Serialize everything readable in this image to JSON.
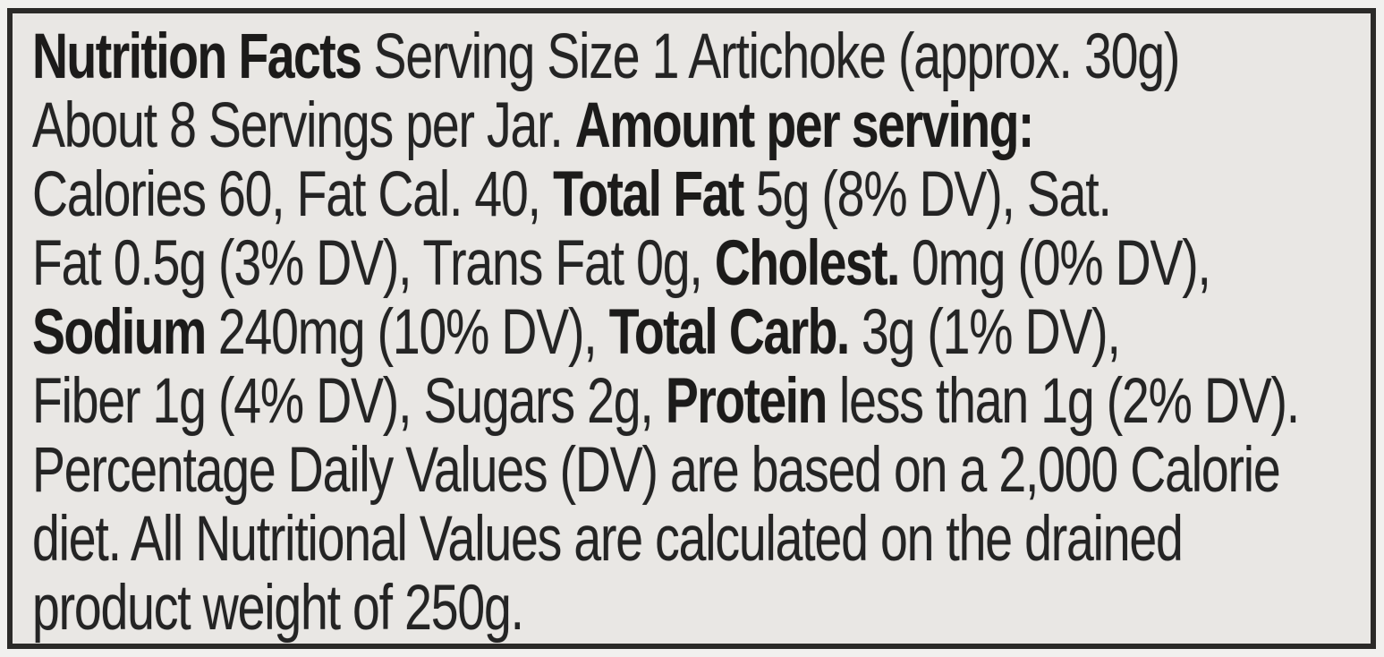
{
  "colors": {
    "outer_background": "#f1f0ee",
    "paper_background": "#e9e7e4",
    "frame": "#2b2a28",
    "ink": "#242424",
    "ink_bold": "#1c1b1a"
  },
  "nutrition_label": {
    "title": "Nutrition Facts",
    "serving_size": "1 Artichoke (approx. 30g)",
    "servings_per_container": "About 8 Servings per Jar.",
    "facts": {
      "calories": "60",
      "fat_calories": "40",
      "total_fat": "5g (8% DV)",
      "saturated_fat": "0.5g (3% DV)",
      "trans_fat": "0g",
      "cholesterol": "0mg (0% DV)",
      "sodium": "240mg (10% DV)",
      "total_carbohydrate": "3g (1% DV)",
      "fiber": "1g (4% DV)",
      "sugars": "2g",
      "protein": "less than 1g (2% DV)"
    },
    "footnote": "Percentage Daily Values (DV) are based on a 2,000 Calorie diet. All Nutritional Values are calculated on the drained product weight of 250g.",
    "lines": [
      {
        "segments": [
          {
            "text": "Nutrition Facts",
            "bold": true
          },
          {
            "text": " Serving Size 1 Artichoke (approx. 30g)",
            "bold": false
          }
        ]
      },
      {
        "segments": [
          {
            "text": "About 8 Servings per Jar. ",
            "bold": false
          },
          {
            "text": "Amount per serving:",
            "bold": true
          }
        ]
      },
      {
        "segments": [
          {
            "text": "Calories 60, Fat Cal. 40, ",
            "bold": false
          },
          {
            "text": "Total Fat",
            "bold": true
          },
          {
            "text": " 5g (8% DV), Sat.",
            "bold": false
          }
        ]
      },
      {
        "segments": [
          {
            "text": "Fat 0.5g (3% DV), Trans Fat 0g, ",
            "bold": false
          },
          {
            "text": "Cholest.",
            "bold": true
          },
          {
            "text": " 0mg (0% DV),",
            "bold": false
          }
        ]
      },
      {
        "segments": [
          {
            "text": "Sodium",
            "bold": true
          },
          {
            "text": " 240mg (10% DV), ",
            "bold": false
          },
          {
            "text": "Total Carb.",
            "bold": true
          },
          {
            "text": " 3g (1% DV),",
            "bold": false
          }
        ]
      },
      {
        "segments": [
          {
            "text": "Fiber 1g (4% DV), Sugars 2g, ",
            "bold": false
          },
          {
            "text": "Protein",
            "bold": true
          },
          {
            "text": " less than 1g (2% DV).",
            "bold": false
          }
        ]
      },
      {
        "segments": [
          {
            "text": "Percentage Daily Values (DV) are based on a 2,000 Calorie",
            "bold": false
          }
        ]
      },
      {
        "segments": [
          {
            "text": "diet. All Nutritional Values are calculated on the drained",
            "bold": false
          }
        ]
      },
      {
        "segments": [
          {
            "text": "product weight of 250g.",
            "bold": false
          }
        ]
      }
    ]
  }
}
